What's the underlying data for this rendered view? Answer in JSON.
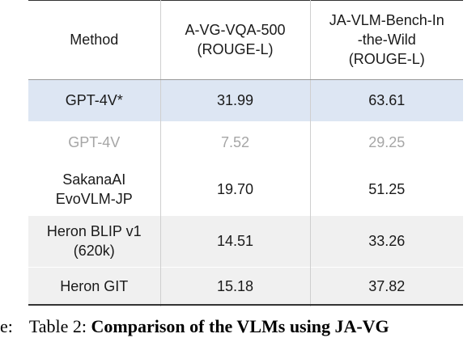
{
  "table": {
    "headers": [
      "Method",
      "A-VG-VQA-500\n(ROUGE-L)",
      "JA-VLM-Bench-In\n-the-Wild\n(ROUGE-L)"
    ],
    "rows": [
      {
        "method": "GPT-4V*",
        "a_vg_vqa": "31.99",
        "ja_vlm": "63.61"
      },
      {
        "method": "GPT-4V",
        "a_vg_vqa": "7.52",
        "ja_vlm": "29.25"
      },
      {
        "method": "SakanaAI\nEvoVLM-JP",
        "a_vg_vqa": "19.70",
        "ja_vlm": "51.25"
      },
      {
        "method": "Heron BLIP v1\n(620k)",
        "a_vg_vqa": "14.51",
        "ja_vlm": "33.26"
      },
      {
        "method": "Heron GIT",
        "a_vg_vqa": "15.18",
        "ja_vlm": "37.82"
      }
    ]
  },
  "caption": {
    "lead": "e:",
    "label": "Table 2:",
    "bold_text": "Comparison of the VLMs using JA-VG"
  },
  "colors": {
    "highlight_row": "#dde6f3",
    "shaded_row": "#f0f0f0",
    "faded_text": "#a6a6a6"
  }
}
